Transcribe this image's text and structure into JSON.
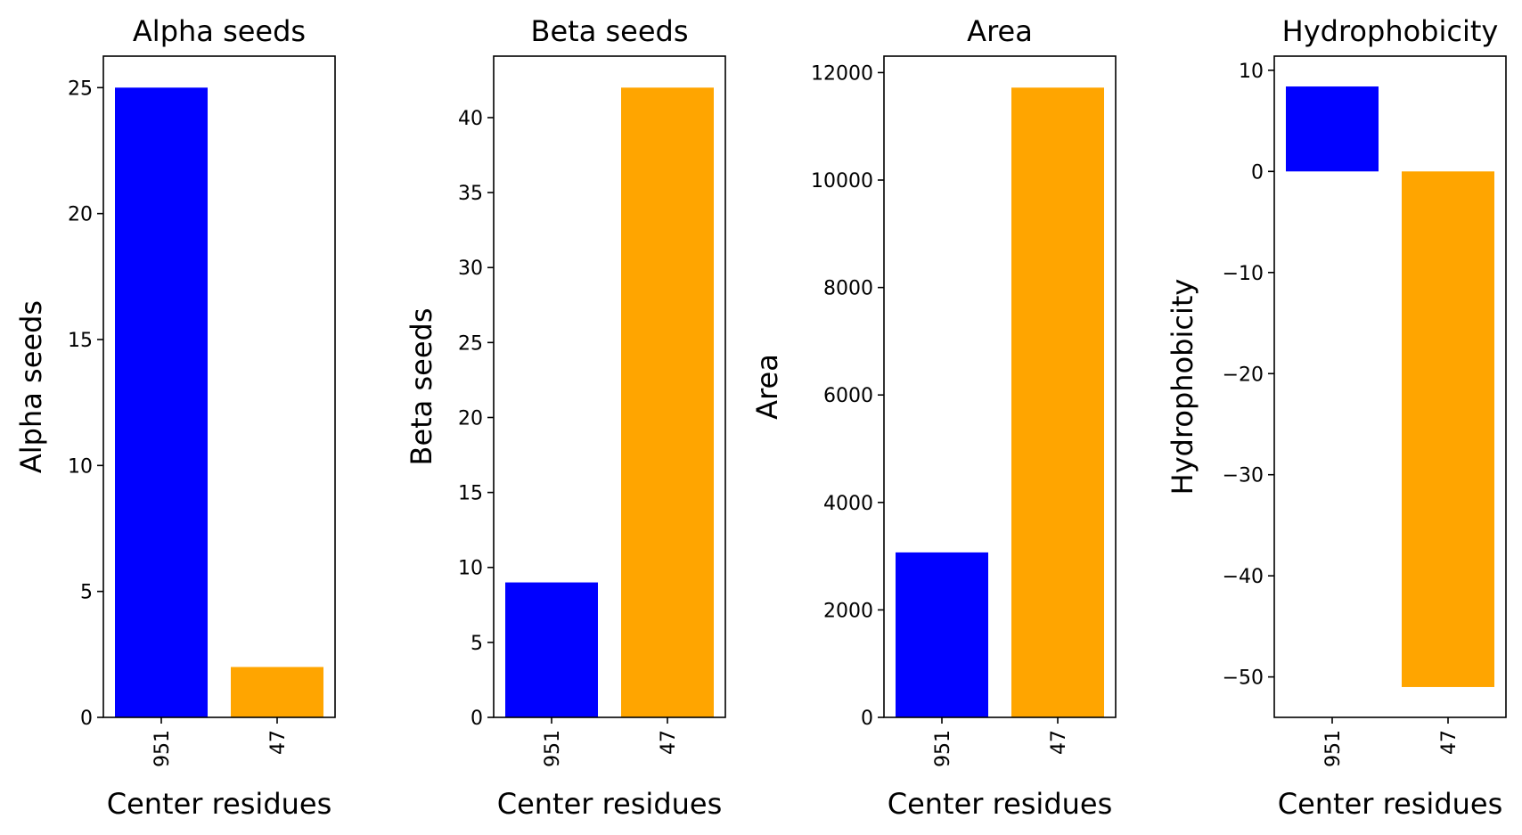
{
  "chart_data": [
    {
      "type": "bar",
      "title": "Alpha seeds",
      "xlabel": "Center residues",
      "ylabel": "Alpha seeds",
      "categories": [
        "951",
        "47"
      ],
      "values": [
        25,
        2
      ],
      "colors": [
        "#0000ff",
        "#ffa500"
      ],
      "ylim": [
        0,
        26.25
      ],
      "yticks": [
        0,
        5,
        10,
        15,
        20,
        25
      ],
      "grid": false
    },
    {
      "type": "bar",
      "title": "Beta seeds",
      "xlabel": "Center residues",
      "ylabel": "Beta seeds",
      "categories": [
        "951",
        "47"
      ],
      "values": [
        9,
        42
      ],
      "colors": [
        "#0000ff",
        "#ffa500"
      ],
      "ylim": [
        0,
        44.1
      ],
      "yticks": [
        0,
        5,
        10,
        15,
        20,
        25,
        30,
        35,
        40
      ],
      "grid": false
    },
    {
      "type": "bar",
      "title": "Area",
      "xlabel": "Center residues",
      "ylabel": "Area",
      "categories": [
        "951",
        "47"
      ],
      "values": [
        3070,
        11720
      ],
      "colors": [
        "#0000ff",
        "#ffa500"
      ],
      "ylim": [
        0,
        12306
      ],
      "yticks": [
        0,
        2000,
        4000,
        6000,
        8000,
        10000,
        12000
      ],
      "grid": false
    },
    {
      "type": "bar",
      "title": "Hydrophobicity",
      "xlabel": "Center residues",
      "ylabel": "Hydrophobicity",
      "categories": [
        "951",
        "47"
      ],
      "values": [
        8.4,
        -51.0
      ],
      "colors": [
        "#0000ff",
        "#ffa500"
      ],
      "ylim": [
        -54.0,
        11.4
      ],
      "yticks": [
        10,
        0,
        -10,
        -20,
        -30,
        -40,
        -50
      ],
      "ytick_labels": [
        "10",
        "0",
        "−10",
        "−20",
        "−30",
        "−40",
        "−50"
      ],
      "grid": false
    }
  ]
}
